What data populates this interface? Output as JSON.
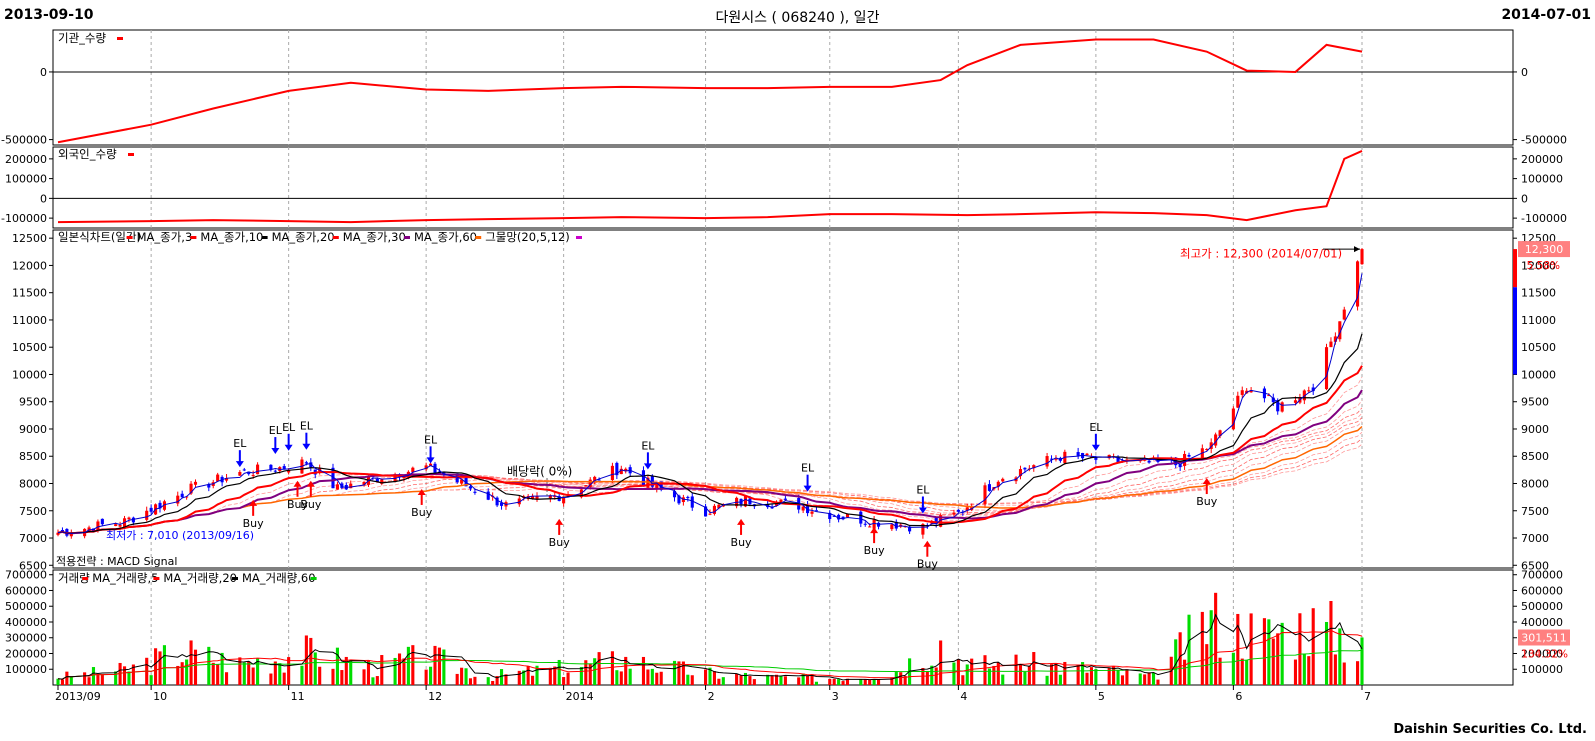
{
  "header": {
    "start_date": "2013-09-10",
    "end_date": "2014-07-01",
    "title": "다원시스 ( 068240 ), 일간"
  },
  "footer": "Daishin Securities Co. Ltd.",
  "colors": {
    "up": "#ff0000",
    "down": "#0000ff",
    "ma3": "#ff0000",
    "ma10": "#000000",
    "ma20": "#ff0000",
    "ma30": "#800080",
    "ma60": "#ff6600",
    "ribbon": "#ff6666",
    "vol_ma60": "#00cc00"
  },
  "chart_data": [
    {
      "type": "line",
      "panel": "institution",
      "legend": "기관_수량",
      "yticks": [
        0,
        -500000
      ],
      "ytick_labels": [
        "0",
        "-500000"
      ],
      "ylim": [
        -540000,
        310000
      ],
      "x": [
        "2013-09-10",
        "2013-10-01",
        "2013-10-15",
        "2013-11-01",
        "2013-11-15",
        "2013-12-02",
        "2013-12-16",
        "2014-01-02",
        "2014-01-15",
        "2014-02-03",
        "2014-02-17",
        "2014-03-03",
        "2014-03-17",
        "2014-03-28",
        "2014-04-03",
        "2014-04-15",
        "2014-05-02",
        "2014-05-15",
        "2014-05-27",
        "2014-06-05",
        "2014-06-16",
        "2014-06-23",
        "2014-07-01"
      ],
      "values": [
        -520000,
        -390000,
        -270000,
        -140000,
        -80000,
        -130000,
        -140000,
        -120000,
        -110000,
        -120000,
        -120000,
        -110000,
        -110000,
        -60000,
        50000,
        200000,
        240000,
        240000,
        150000,
        10000,
        0,
        200000,
        150000
      ]
    },
    {
      "type": "line",
      "panel": "foreign",
      "legend": "외국인_수량",
      "yticks": [
        200000,
        100000,
        0,
        -100000
      ],
      "ytick_labels": [
        "200000",
        "100000",
        "0",
        "-100000"
      ],
      "ylim": [
        -150000,
        260000
      ],
      "x": [
        "2013-09-10",
        "2013-10-01",
        "2013-10-15",
        "2013-11-01",
        "2013-11-15",
        "2013-12-02",
        "2013-12-16",
        "2014-01-02",
        "2014-01-15",
        "2014-02-03",
        "2014-02-17",
        "2014-03-03",
        "2014-03-17",
        "2014-04-03",
        "2014-04-15",
        "2014-05-02",
        "2014-05-15",
        "2014-05-27",
        "2014-06-05",
        "2014-06-16",
        "2014-06-23",
        "2014-06-27",
        "2014-07-01"
      ],
      "values": [
        -120000,
        -115000,
        -110000,
        -115000,
        -120000,
        -110000,
        -105000,
        -100000,
        -95000,
        -100000,
        -95000,
        -80000,
        -80000,
        -85000,
        -80000,
        -70000,
        -75000,
        -85000,
        -110000,
        -60000,
        -40000,
        200000,
        240000
      ]
    },
    {
      "type": "candlestick",
      "panel": "price",
      "legend": [
        "일본식차트(일간)",
        "MA_종가,3",
        "MA_종가,10",
        "MA_종가,20",
        "MA_종가,30",
        "MA_종가,60",
        "그물망(20,5,12)"
      ],
      "yticks": [
        12500,
        12000,
        11500,
        11000,
        10500,
        10000,
        9500,
        9000,
        8500,
        8000,
        7500,
        7000,
        6500
      ],
      "ylim": [
        6450,
        12650
      ],
      "x": [
        "2013-09-10",
        "2013-09-25",
        "2013-10-10",
        "2013-10-21",
        "2013-10-31",
        "2013-11-05",
        "2013-11-12",
        "2013-11-20",
        "2013-12-02",
        "2013-12-10",
        "2013-12-20",
        "2014-01-02",
        "2014-01-15",
        "2014-01-23",
        "2014-02-03",
        "2014-02-12",
        "2014-02-24",
        "2014-03-05",
        "2014-03-14",
        "2014-03-24",
        "2014-04-01",
        "2014-04-10",
        "2014-04-24",
        "2014-05-08",
        "2014-05-20",
        "2014-05-28",
        "2014-06-05",
        "2014-06-12",
        "2014-06-20",
        "2014-06-26",
        "2014-07-01"
      ],
      "close": [
        7100,
        7300,
        7900,
        8200,
        8300,
        8400,
        7900,
        8100,
        8300,
        8000,
        7600,
        7800,
        8300,
        7900,
        7500,
        7700,
        7600,
        7400,
        7300,
        7200,
        7450,
        8100,
        8500,
        8400,
        8350,
        8700,
        9800,
        9400,
        9800,
        11000,
        12300
      ],
      "annotations": [
        {
          "label": "EL",
          "x": "2013-10-21",
          "price": 8300
        },
        {
          "label": "EL",
          "x": "2013-10-29",
          "price": 8540
        },
        {
          "label": "EL",
          "x": "2013-11-01",
          "price": 8600
        },
        {
          "label": "EL",
          "x": "2013-11-05",
          "price": 8620
        },
        {
          "label": "EL",
          "x": "2013-12-03",
          "price": 8370
        },
        {
          "label": "EL",
          "x": "2014-01-21",
          "price": 8260
        },
        {
          "label": "EL",
          "x": "2014-02-26",
          "price": 7850
        },
        {
          "label": "EL",
          "x": "2014-03-24",
          "price": 7450
        },
        {
          "label": "EL",
          "x": "2014-05-02",
          "price": 8600
        },
        {
          "label": "Buy",
          "x": "2013-10-24",
          "price": 7700
        },
        {
          "label": "Buy",
          "x": "2013-11-03",
          "price": 8050
        },
        {
          "label": "Buy",
          "x": "2013-11-06",
          "price": 8050
        },
        {
          "label": "Buy",
          "x": "2013-12-01",
          "price": 7900
        },
        {
          "label": "Buy",
          "x": "2014-01-01",
          "price": 7350
        },
        {
          "label": "Buy",
          "x": "2014-02-11",
          "price": 7350
        },
        {
          "label": "Buy",
          "x": "2014-03-13",
          "price": 7200
        },
        {
          "label": "Buy",
          "x": "2014-03-25",
          "price": 6950
        },
        {
          "label": "Buy",
          "x": "2014-05-27",
          "price": 8100
        }
      ],
      "dividend_note": "배당락( 0%)",
      "min_note": "최저가 : 7,010 (2013/09/16)",
      "max_note": "최고가 : 12,300 (2014/07/01)",
      "last_price_label": "12,300",
      "last_change_label": "5.58%",
      "strategy_label": "적용전략 : MACD Signal"
    },
    {
      "type": "bar",
      "panel": "volume",
      "legend": [
        "거래량",
        "MA_거래량,5",
        "MA_거래량,20",
        "MA_거래량,60"
      ],
      "yticks": [
        700000,
        600000,
        500000,
        400000,
        300000,
        200000,
        100000
      ],
      "ytick_labels": [
        "700000",
        "600000",
        "500000",
        "400000",
        "300000",
        "200000",
        "100000"
      ],
      "ylim": [
        0,
        730000
      ],
      "x": [
        "2013-09-10",
        "2013-09-25",
        "2013-10-08",
        "2013-10-21",
        "2013-11-05",
        "2013-11-20",
        "2013-12-02",
        "2013-12-16",
        "2014-01-02",
        "2014-01-15",
        "2014-02-03",
        "2014-02-17",
        "2014-03-03",
        "2014-03-17",
        "2014-03-28",
        "2014-04-03",
        "2014-04-15",
        "2014-05-02",
        "2014-05-15",
        "2014-05-28",
        "2014-06-02",
        "2014-06-10",
        "2014-06-18",
        "2014-06-26",
        "2014-07-01"
      ],
      "values": [
        80000,
        150000,
        340000,
        220000,
        330000,
        180000,
        290000,
        90000,
        170000,
        260000,
        120000,
        80000,
        70000,
        120000,
        440000,
        200000,
        220000,
        160000,
        80000,
        680000,
        570000,
        520000,
        620000,
        540000,
        301511
      ],
      "last_volume_label": "301,511",
      "last_change_label": "134.32%"
    }
  ],
  "time_axis": {
    "labels": [
      "2013/09",
      "10",
      "11",
      "12",
      "2014",
      "2",
      "3",
      "4",
      "5",
      "6",
      "7"
    ],
    "dates": [
      "2013-09-10",
      "2013-10-01",
      "2013-11-01",
      "2013-12-02",
      "2014-01-02",
      "2014-02-03",
      "2014-03-03",
      "2014-04-01",
      "2014-05-02",
      "2014-06-02",
      "2014-07-01"
    ]
  }
}
